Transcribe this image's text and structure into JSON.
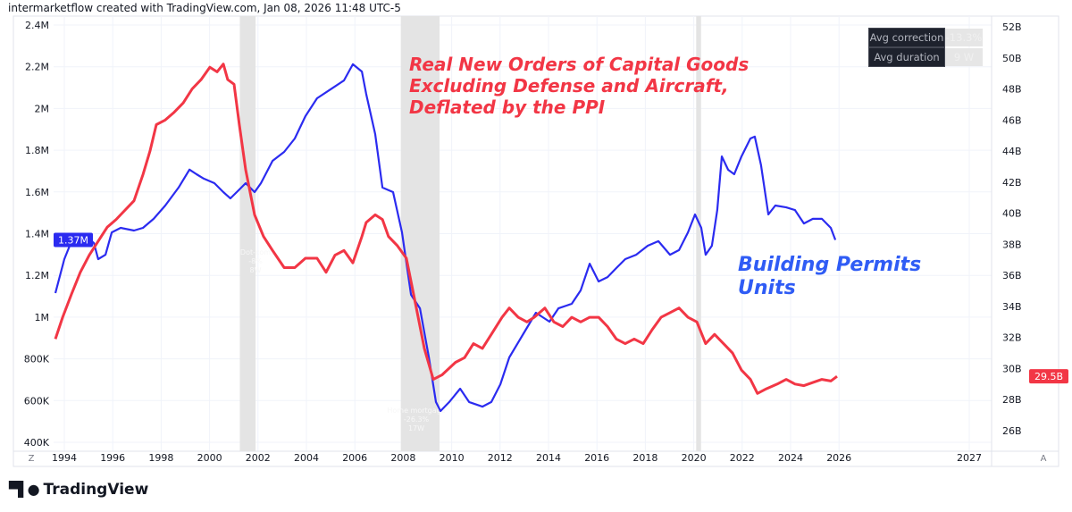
{
  "header": "intermarketflow created with TradingView.com, Jan 08, 2026 11:48 UTC-5",
  "stats": [
    {
      "label": "Avg correction",
      "value": "-13.3%"
    },
    {
      "label": "Avg duration",
      "value": "9 W"
    }
  ],
  "annotations": {
    "red": "Real New Orders of Capital Goods\nExcluding Defense and Aircraft,\nDeflated by the PPI",
    "blue": "Building Permits\nUnits"
  },
  "recession_labels": [
    {
      "lines": [
        "Dot-com",
        "-8%",
        "8W"
      ]
    },
    {
      "lines": [
        "Home mortgage",
        "-26.3%",
        "17W"
      ]
    }
  ],
  "logo": "TradingView",
  "axis_buttons": {
    "left": "Z",
    "right": "A"
  },
  "colors": {
    "blue": "#2b2bf0",
    "red": "#f23645",
    "annotation_blue": "#2f5cf5",
    "shade": "#e4e4e4"
  },
  "chart_data": {
    "type": "line",
    "x_ticks": [
      "1994",
      "1996",
      "1998",
      "2000",
      "2002",
      "2004",
      "2006",
      "2008",
      "2010",
      "2012",
      "2014",
      "2016",
      "2018",
      "2020",
      "2022",
      "2024",
      "2026",
      "2027"
    ],
    "left_axis": {
      "ticks": [
        "2.4M",
        "2.2M",
        "2M",
        "1.8M",
        "1.6M",
        "1.4M",
        "1.2M",
        "1M",
        "800K",
        "600K",
        "400K"
      ],
      "ylim": [
        400000,
        2400000
      ],
      "last_label": "1.37M"
    },
    "right_axis": {
      "ticks": [
        "52B",
        "50B",
        "48B",
        "46B",
        "44B",
        "42B",
        "40B",
        "38B",
        "36B",
        "34B",
        "32B",
        "30B",
        "28B",
        "26B"
      ],
      "ylim": [
        26,
        52
      ],
      "last_label": "29.5B"
    },
    "shaded_periods": [
      [
        2001.25,
        2001.9
      ],
      [
        2007.9,
        2009.5
      ],
      [
        2020.1,
        2020.3
      ]
    ],
    "series": [
      {
        "name": "Building Permits Units",
        "axis": "left",
        "color": "#2b2bf0",
        "x": [
          1993.63,
          1994.0,
          1994.3,
          1994.66,
          1994.92,
          1995.22,
          1995.4,
          1995.7,
          1995.96,
          1996.33,
          1996.88,
          1997.25,
          1997.69,
          1998.17,
          1998.72,
          1999.17,
          1999.46,
          1999.76,
          2000.2,
          2000.57,
          2000.86,
          2001.12,
          2001.49,
          2001.86,
          2002.12,
          2002.6,
          2003.08,
          2003.52,
          2003.96,
          2004.44,
          2005.0,
          2005.55,
          2005.92,
          2006.29,
          2006.47,
          2006.84,
          2007.14,
          2007.58,
          2007.95,
          2008.32,
          2008.69,
          2009.06,
          2009.35,
          2009.54,
          2009.9,
          2010.35,
          2010.72,
          2011.27,
          2011.64,
          2012.01,
          2012.38,
          2012.93,
          2013.48,
          2014.04,
          2014.41,
          2014.96,
          2015.33,
          2015.7,
          2016.07,
          2016.44,
          2016.8,
          2017.17,
          2017.62,
          2018.1,
          2018.54,
          2019.02,
          2019.39,
          2019.76,
          2020.05,
          2020.31,
          2020.49,
          2020.75,
          2020.97,
          2021.16,
          2021.42,
          2021.67,
          2021.97,
          2022.34,
          2022.52,
          2022.78,
          2023.08,
          2023.37,
          2023.82,
          2024.18,
          2024.55,
          2024.92,
          2025.29,
          2025.66,
          2025.85
        ],
        "values": [
          1115000,
          1278000,
          1364000,
          1372000,
          1385000,
          1355000,
          1278000,
          1299000,
          1406000,
          1428000,
          1415000,
          1428000,
          1471000,
          1535000,
          1621000,
          1707000,
          1685000,
          1664000,
          1642000,
          1599000,
          1569000,
          1599000,
          1642000,
          1599000,
          1642000,
          1749000,
          1792000,
          1856000,
          1963000,
          2049000,
          2092000,
          2134000,
          2212000,
          2177000,
          2070000,
          1877000,
          1621000,
          1599000,
          1406000,
          1107000,
          1042000,
          807000,
          593000,
          550000,
          593000,
          657000,
          593000,
          571000,
          593000,
          678000,
          807000,
          914000,
          1021000,
          978000,
          1042000,
          1064000,
          1128000,
          1256000,
          1171000,
          1192000,
          1235000,
          1278000,
          1299000,
          1342000,
          1364000,
          1299000,
          1321000,
          1406000,
          1492000,
          1428000,
          1299000,
          1342000,
          1513000,
          1770000,
          1706000,
          1685000,
          1770000,
          1856000,
          1865000,
          1728000,
          1492000,
          1535000,
          1526000,
          1513000,
          1449000,
          1471000,
          1471000,
          1428000,
          1370000
        ]
      },
      {
        "name": "Real New Orders of Capital Goods Excluding Defense and Aircraft, Deflated by the PPI",
        "axis": "right",
        "color": "#f23645",
        "x": [
          1993.63,
          1993.93,
          1994.3,
          1994.66,
          1995.03,
          1995.4,
          1995.77,
          1996.14,
          1996.51,
          1996.88,
          1997.25,
          1997.54,
          1997.8,
          1998.17,
          1998.54,
          1998.91,
          1999.28,
          1999.65,
          2000.01,
          2000.31,
          2000.57,
          2000.75,
          2001.01,
          2001.23,
          2001.49,
          2001.86,
          2002.23,
          2002.6,
          2003.08,
          2003.52,
          2003.96,
          2004.44,
          2004.81,
          2005.18,
          2005.55,
          2005.92,
          2006.29,
          2006.47,
          2006.84,
          2007.14,
          2007.39,
          2007.76,
          2008.13,
          2008.5,
          2008.87,
          2009.24,
          2009.61,
          2010.16,
          2010.53,
          2010.9,
          2011.27,
          2011.64,
          2012.08,
          2012.38,
          2012.75,
          2013.11,
          2013.41,
          2013.85,
          2014.22,
          2014.59,
          2014.96,
          2015.33,
          2015.7,
          2016.07,
          2016.44,
          2016.8,
          2017.17,
          2017.54,
          2017.91,
          2018.28,
          2018.65,
          2019.02,
          2019.39,
          2019.76,
          2020.13,
          2020.49,
          2020.86,
          2021.23,
          2021.6,
          2021.97,
          2022.34,
          2022.63,
          2023.0,
          2023.45,
          2023.82,
          2024.18,
          2024.55,
          2024.92,
          2025.29,
          2025.66,
          2025.92
        ],
        "values": [
          31.9,
          33.3,
          34.8,
          36.2,
          37.3,
          38.2,
          39.1,
          39.6,
          40.2,
          40.8,
          42.5,
          44.0,
          45.7,
          46.0,
          46.5,
          47.1,
          48.0,
          48.6,
          49.4,
          49.1,
          49.6,
          48.6,
          48.3,
          45.7,
          42.8,
          39.9,
          38.5,
          37.6,
          36.5,
          36.5,
          37.1,
          37.1,
          36.2,
          37.3,
          37.6,
          36.8,
          38.5,
          39.4,
          39.9,
          39.6,
          38.5,
          37.9,
          37.1,
          34.2,
          31.3,
          29.3,
          29.6,
          30.4,
          30.7,
          31.6,
          31.3,
          32.2,
          33.3,
          33.9,
          33.3,
          33.0,
          33.3,
          33.9,
          33.0,
          32.7,
          33.3,
          33.0,
          33.3,
          33.3,
          32.7,
          31.9,
          31.6,
          31.9,
          31.6,
          32.5,
          33.3,
          33.6,
          33.9,
          33.3,
          33.0,
          31.6,
          32.2,
          31.6,
          31.0,
          29.9,
          29.3,
          28.4,
          28.7,
          29.0,
          29.3,
          29.0,
          28.9,
          29.1,
          29.3,
          29.2,
          29.5
        ]
      }
    ]
  }
}
